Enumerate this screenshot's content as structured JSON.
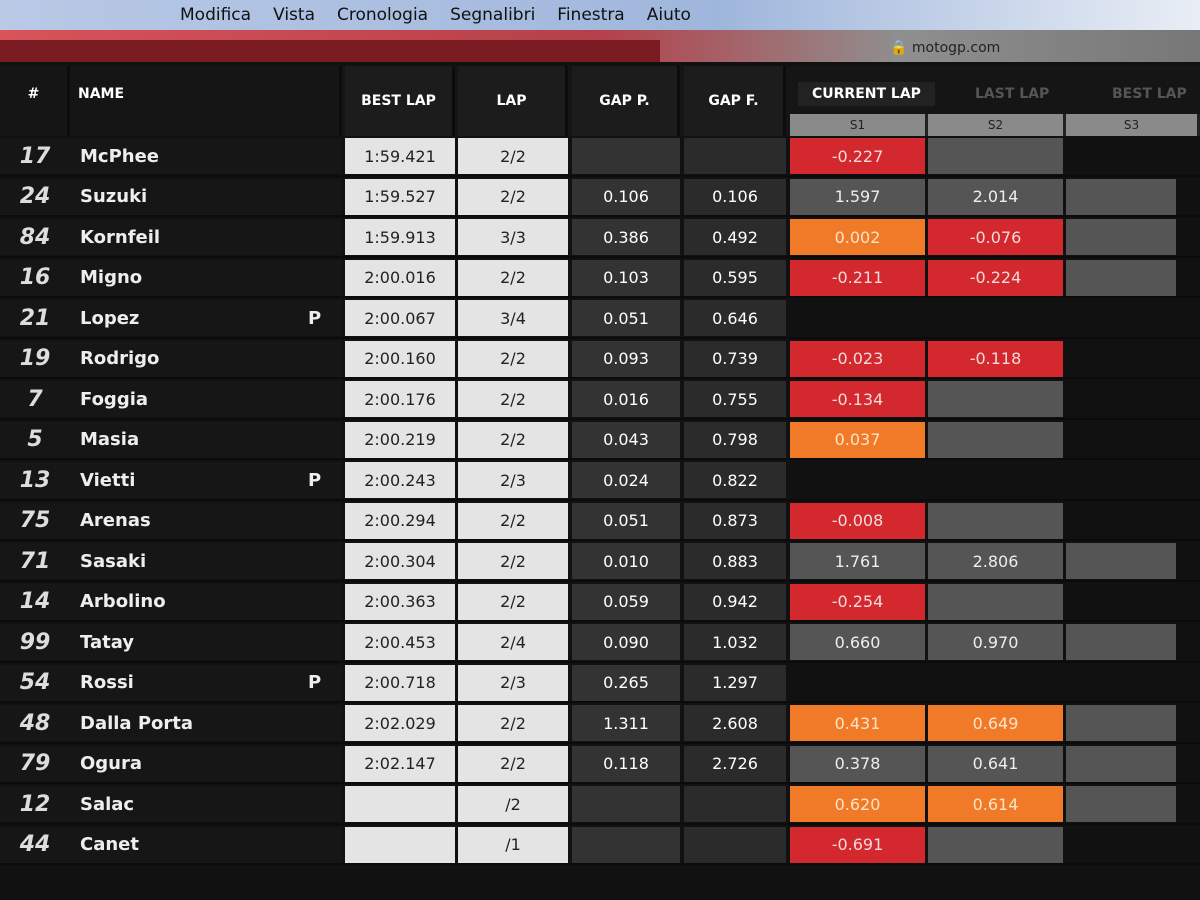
{
  "menu": [
    "Modifica",
    "Vista",
    "Cronologia",
    "Segnalibri",
    "Finestra",
    "Aiuto"
  ],
  "address": "motogp.com",
  "colors": {
    "red": "#d3282e",
    "orange": "#f07a28",
    "grey": "#555555"
  },
  "headers": {
    "num": "#",
    "name": "NAME",
    "best_lap": "BEST LAP",
    "lap": "LAP",
    "gap_p": "GAP P.",
    "gap_f": "GAP F.",
    "tabs": [
      "CURRENT LAP",
      "LAST LAP",
      "BEST LAP"
    ],
    "sectors": [
      "S1",
      "S2",
      "S3"
    ]
  },
  "rows": [
    {
      "num": "17",
      "name": "McPhee",
      "pit": "",
      "best": "1:59.421",
      "lap": "2/2",
      "gap_p": "",
      "gap_f": "",
      "s1": [
        "-0.227",
        "red"
      ],
      "s2": [
        "",
        "grey"
      ],
      "s3": [
        "",
        "none"
      ]
    },
    {
      "num": "24",
      "name": "Suzuki",
      "pit": "",
      "best": "1:59.527",
      "lap": "2/2",
      "gap_p": "0.106",
      "gap_f": "0.106",
      "s1": [
        "1.597",
        "grey"
      ],
      "s2": [
        "2.014",
        "grey"
      ],
      "s3": [
        "",
        "grey"
      ]
    },
    {
      "num": "84",
      "name": "Kornfeil",
      "pit": "",
      "best": "1:59.913",
      "lap": "3/3",
      "gap_p": "0.386",
      "gap_f": "0.492",
      "s1": [
        "0.002",
        "orange"
      ],
      "s2": [
        "-0.076",
        "red"
      ],
      "s3": [
        "",
        "grey"
      ]
    },
    {
      "num": "16",
      "name": "Migno",
      "pit": "",
      "best": "2:00.016",
      "lap": "2/2",
      "gap_p": "0.103",
      "gap_f": "0.595",
      "s1": [
        "-0.211",
        "red"
      ],
      "s2": [
        "-0.224",
        "red"
      ],
      "s3": [
        "",
        "grey"
      ]
    },
    {
      "num": "21",
      "name": "Lopez",
      "pit": "P",
      "best": "2:00.067",
      "lap": "3/4",
      "gap_p": "0.051",
      "gap_f": "0.646",
      "s1": [
        "",
        "none"
      ],
      "s2": [
        "",
        "none"
      ],
      "s3": [
        "",
        "none"
      ]
    },
    {
      "num": "19",
      "name": "Rodrigo",
      "pit": "",
      "best": "2:00.160",
      "lap": "2/2",
      "gap_p": "0.093",
      "gap_f": "0.739",
      "s1": [
        "-0.023",
        "red"
      ],
      "s2": [
        "-0.118",
        "red"
      ],
      "s3": [
        "",
        "none"
      ]
    },
    {
      "num": "7",
      "name": "Foggia",
      "pit": "",
      "best": "2:00.176",
      "lap": "2/2",
      "gap_p": "0.016",
      "gap_f": "0.755",
      "s1": [
        "-0.134",
        "red"
      ],
      "s2": [
        "",
        "grey"
      ],
      "s3": [
        "",
        "none"
      ]
    },
    {
      "num": "5",
      "name": "Masia",
      "pit": "",
      "best": "2:00.219",
      "lap": "2/2",
      "gap_p": "0.043",
      "gap_f": "0.798",
      "s1": [
        "0.037",
        "orange"
      ],
      "s2": [
        "",
        "grey"
      ],
      "s3": [
        "",
        "none"
      ]
    },
    {
      "num": "13",
      "name": "Vietti",
      "pit": "P",
      "best": "2:00.243",
      "lap": "2/3",
      "gap_p": "0.024",
      "gap_f": "0.822",
      "s1": [
        "",
        "none"
      ],
      "s2": [
        "",
        "none"
      ],
      "s3": [
        "",
        "none"
      ]
    },
    {
      "num": "75",
      "name": "Arenas",
      "pit": "",
      "best": "2:00.294",
      "lap": "2/2",
      "gap_p": "0.051",
      "gap_f": "0.873",
      "s1": [
        "-0.008",
        "red"
      ],
      "s2": [
        "",
        "grey"
      ],
      "s3": [
        "",
        "none"
      ]
    },
    {
      "num": "71",
      "name": "Sasaki",
      "pit": "",
      "best": "2:00.304",
      "lap": "2/2",
      "gap_p": "0.010",
      "gap_f": "0.883",
      "s1": [
        "1.761",
        "grey"
      ],
      "s2": [
        "2.806",
        "grey"
      ],
      "s3": [
        "",
        "grey"
      ]
    },
    {
      "num": "14",
      "name": "Arbolino",
      "pit": "",
      "best": "2:00.363",
      "lap": "2/2",
      "gap_p": "0.059",
      "gap_f": "0.942",
      "s1": [
        "-0.254",
        "red"
      ],
      "s2": [
        "",
        "grey"
      ],
      "s3": [
        "",
        "none"
      ]
    },
    {
      "num": "99",
      "name": "Tatay",
      "pit": "",
      "best": "2:00.453",
      "lap": "2/4",
      "gap_p": "0.090",
      "gap_f": "1.032",
      "s1": [
        "0.660",
        "grey"
      ],
      "s2": [
        "0.970",
        "grey"
      ],
      "s3": [
        "",
        "grey"
      ]
    },
    {
      "num": "54",
      "name": "Rossi",
      "pit": "P",
      "best": "2:00.718",
      "lap": "2/3",
      "gap_p": "0.265",
      "gap_f": "1.297",
      "s1": [
        "",
        "none"
      ],
      "s2": [
        "",
        "none"
      ],
      "s3": [
        "",
        "none"
      ]
    },
    {
      "num": "48",
      "name": "Dalla Porta",
      "pit": "",
      "best": "2:02.029",
      "lap": "2/2",
      "gap_p": "1.311",
      "gap_f": "2.608",
      "s1": [
        "0.431",
        "orange"
      ],
      "s2": [
        "0.649",
        "orange"
      ],
      "s3": [
        "",
        "grey"
      ]
    },
    {
      "num": "79",
      "name": "Ogura",
      "pit": "",
      "best": "2:02.147",
      "lap": "2/2",
      "gap_p": "0.118",
      "gap_f": "2.726",
      "s1": [
        "0.378",
        "grey"
      ],
      "s2": [
        "0.641",
        "grey"
      ],
      "s3": [
        "",
        "grey"
      ]
    },
    {
      "num": "12",
      "name": "Salac",
      "pit": "",
      "best": "",
      "lap": "/2",
      "gap_p": "",
      "gap_f": "",
      "s1": [
        "0.620",
        "orange"
      ],
      "s2": [
        "0.614",
        "orange"
      ],
      "s3": [
        "",
        "grey"
      ]
    },
    {
      "num": "44",
      "name": "Canet",
      "pit": "",
      "best": "",
      "lap": "/1",
      "gap_p": "",
      "gap_f": "",
      "s1": [
        "-0.691",
        "red"
      ],
      "s2": [
        "",
        "grey"
      ],
      "s3": [
        "",
        "none"
      ]
    }
  ]
}
